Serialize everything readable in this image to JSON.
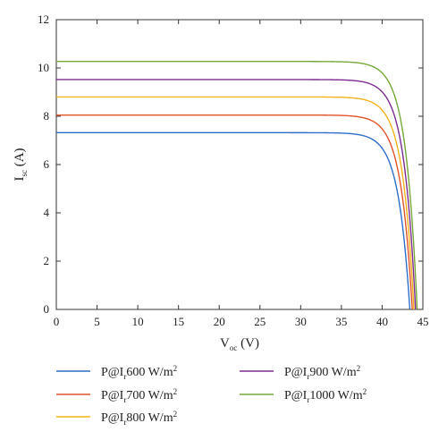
{
  "chart_data": {
    "type": "line",
    "xlabel": {
      "main": "V",
      "sub": "oc",
      "unit": " (V)"
    },
    "ylabel": {
      "main": "I",
      "sub": "sc",
      "unit": " (A)"
    },
    "xlim": [
      0,
      45
    ],
    "ylim": [
      0,
      12
    ],
    "xticks": [
      0,
      5,
      10,
      15,
      20,
      25,
      30,
      35,
      40,
      45
    ],
    "yticks": [
      0,
      2,
      4,
      6,
      8,
      10,
      12
    ],
    "grid": false,
    "legend_position": "bottom",
    "series": [
      {
        "name": "P@Ir600 W/m2",
        "label_parts": [
          "P@I",
          "r",
          "600 W/m",
          "2"
        ],
        "color": "#2f6fc9",
        "isc": 7.32,
        "voc": 43.4
      },
      {
        "name": "P@Ir700 W/m2",
        "label_parts": [
          "P@I",
          "r",
          "700 W/m",
          "2"
        ],
        "color": "#e0542a",
        "isc": 8.05,
        "voc": 43.7
      },
      {
        "name": "P@Ir800 W/m2",
        "label_parts": [
          "P@I",
          "r",
          "800 W/m",
          "2"
        ],
        "color": "#f2b21b",
        "isc": 8.8,
        "voc": 43.9
      },
      {
        "name": "P@Ir900 W/m2",
        "label_parts": [
          "P@I",
          "r",
          "900 W/m",
          "2"
        ],
        "color": "#7d2d92",
        "isc": 9.52,
        "voc": 44.1
      },
      {
        "name": "P@Ir1000 W/m2",
        "label_parts": [
          "P@I",
          "r",
          "1000 W/m",
          "2"
        ],
        "color": "#76a83a",
        "isc": 10.27,
        "voc": 44.3
      }
    ]
  }
}
